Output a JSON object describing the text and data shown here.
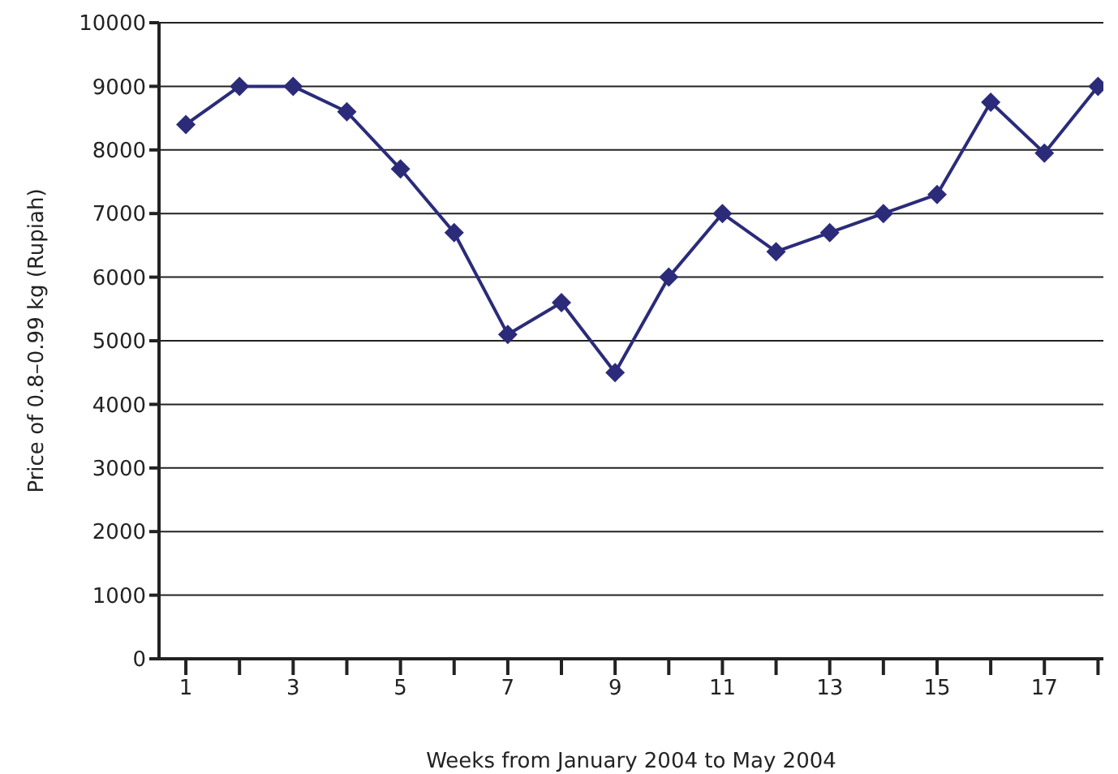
{
  "chart_data": {
    "type": "line",
    "xlabel": "Weeks from January 2004 to May 2004",
    "ylabel": "Price of 0.8–0.99 kg (Rupiah)",
    "x": [
      1,
      2,
      3,
      4,
      5,
      6,
      7,
      8,
      9,
      10,
      11,
      12,
      13,
      14,
      15,
      16,
      17,
      18
    ],
    "series": [
      {
        "color": "#2b2b7a",
        "values": [
          8400,
          9000,
          9000,
          8600,
          7700,
          6700,
          5100,
          5600,
          4500,
          6000,
          7000,
          6400,
          6700,
          7000,
          7300,
          8750,
          7950,
          9000
        ]
      }
    ],
    "xlim": [
      0.5,
      18.1
    ],
    "xticks": [
      1,
      {
        "value": 2,
        "label": null
      },
      3,
      {
        "value": 4,
        "label": null
      },
      5,
      {
        "value": 6,
        "label": null
      },
      7,
      {
        "value": 8,
        "label": null
      },
      9,
      {
        "value": 10,
        "label": null
      },
      11,
      {
        "value": 12,
        "label": null
      },
      13,
      {
        "value": 14,
        "label": null
      },
      15,
      {
        "value": 16,
        "label": null
      },
      17,
      {
        "value": 18,
        "label": null
      }
    ],
    "ylim": [
      0,
      10000
    ],
    "yticks": [
      0,
      1000,
      2000,
      3000,
      4000,
      5000,
      6000,
      7000,
      8000,
      9000,
      10000
    ],
    "grid": "y",
    "marker": "diamond",
    "line_style": "solid"
  }
}
